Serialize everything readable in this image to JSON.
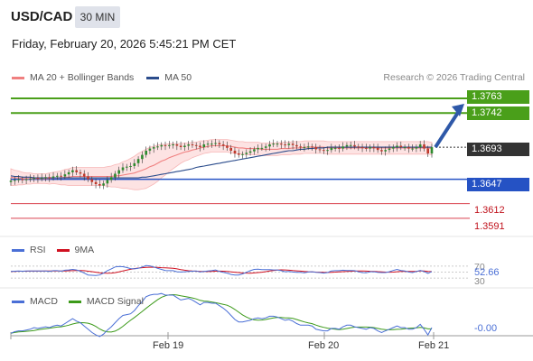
{
  "header": {
    "symbol": "USD/CAD",
    "interval": "30 MIN",
    "datetime": "Friday, February 20, 2026 5:45:21 PM CET",
    "attribution": "Research © 2026 Trading Central"
  },
  "colors": {
    "resistance": "#4a9f1a",
    "pivot": "#2552c4",
    "support": "#d9424f",
    "current": "#333333",
    "ma20": "#f08080",
    "ma50": "#2b4c8c",
    "rsi": "#4a6fd6",
    "rsi_ma": "#d01020",
    "macd": "#4a6fd6",
    "macd_signal": "#3c9a1a",
    "arrow": "#2e58a8"
  },
  "legend_main": [
    {
      "label": "MA 20 + Bollinger Bands",
      "color": "#f08080"
    },
    {
      "label": "MA 50",
      "color": "#2b4c8c"
    }
  ],
  "legend_rsi": [
    {
      "label": "RSI",
      "color": "#4a6fd6"
    },
    {
      "label": "9MA",
      "color": "#d01020"
    }
  ],
  "legend_macd": [
    {
      "label": "MACD",
      "color": "#4a6fd6"
    },
    {
      "label": "MACD Signal",
      "color": "#3c9a1a"
    }
  ],
  "levels": {
    "r2": "1.3763",
    "r1": "1.3742",
    "current": "1.3693",
    "pivot": "1.3647",
    "s1": "1.3612",
    "s2": "1.3591"
  },
  "rsi_panel": {
    "upper": "70",
    "value": "52.66",
    "lower": "30"
  },
  "macd_panel": {
    "value": "-0.00"
  },
  "x_axis": {
    "labels": [
      "Feb 19",
      "Feb 20",
      "Feb 21"
    ]
  },
  "chart_data": {
    "type": "candlestick",
    "title": "USD/CAD",
    "interval": "30 MIN",
    "ylim": [
      1.3565,
      1.3785
    ],
    "x_ticks": [
      "Feb 19",
      "Feb 20",
      "Feb 21"
    ],
    "close": [
      1.3645,
      1.3646,
      1.3647,
      1.3646,
      1.3647,
      1.3648,
      1.3649,
      1.3648,
      1.3649,
      1.365,
      1.3649,
      1.3651,
      1.3652,
      1.3651,
      1.3654,
      1.3657,
      1.366,
      1.3657,
      1.3655,
      1.3651,
      1.3647,
      1.3643,
      1.364,
      1.3638,
      1.3641,
      1.3646,
      1.365,
      1.3655,
      1.366,
      1.3664,
      1.3665,
      1.3666,
      1.367,
      1.3676,
      1.3682,
      1.3688,
      1.3691,
      1.3693,
      1.3694,
      1.3696,
      1.3695,
      1.3696,
      1.3697,
      1.3695,
      1.3693,
      1.3695,
      1.3697,
      1.3696,
      1.3695,
      1.3693,
      1.3697,
      1.3698,
      1.3698,
      1.3699,
      1.3697,
      1.3695,
      1.3692,
      1.3688,
      1.3684,
      1.3682,
      1.3683,
      1.3685,
      1.3687,
      1.369,
      1.3692,
      1.3692,
      1.3694,
      1.3697,
      1.3698,
      1.3698,
      1.3697,
      1.3696,
      1.3698,
      1.3696,
      1.3694,
      1.3693,
      1.3693,
      1.3694,
      1.3693,
      1.369,
      1.3689,
      1.3688,
      1.3689,
      1.3692,
      1.3692,
      1.3691,
      1.3694,
      1.3696,
      1.3696,
      1.3694,
      1.3693,
      1.3692,
      1.3691,
      1.3693,
      1.3692,
      1.3689,
      1.3687,
      1.3689,
      1.3691,
      1.3693,
      1.3695,
      1.3693,
      1.3693,
      1.3691,
      1.3691,
      1.3693,
      1.3697,
      1.3691,
      1.3684,
      1.3693
    ],
    "ma20": [
      1.365,
      1.3649,
      1.3649,
      1.3648,
      1.3648,
      1.3648,
      1.3648,
      1.3648,
      1.3648,
      1.3648,
      1.3648,
      1.3649,
      1.3649,
      1.3649,
      1.365,
      1.365,
      1.3651,
      1.3651,
      1.3651,
      1.3651,
      1.3651,
      1.3651,
      1.3651,
      1.3651,
      1.3651,
      1.3651,
      1.3651,
      1.3652,
      1.3652,
      1.3653,
      1.3654,
      1.3655,
      1.3656,
      1.3658,
      1.366,
      1.3662,
      1.3665,
      1.3667,
      1.367,
      1.3673,
      1.3675,
      1.3678,
      1.368,
      1.3682,
      1.3684,
      1.3686,
      1.3687,
      1.3689,
      1.369,
      1.3692,
      1.3693,
      1.3694,
      1.3695,
      1.3695,
      1.3695,
      1.3695,
      1.3695,
      1.3694,
      1.3693,
      1.3692,
      1.3692,
      1.3691,
      1.3691,
      1.3691,
      1.3691,
      1.369,
      1.369,
      1.369,
      1.369,
      1.369,
      1.3691,
      1.3691,
      1.3691,
      1.3692,
      1.3692,
      1.3692,
      1.3693,
      1.3693,
      1.3693,
      1.3693,
      1.3693,
      1.3693,
      1.3692,
      1.3692,
      1.3692,
      1.3692,
      1.3692,
      1.3692,
      1.3692,
      1.3692,
      1.3692,
      1.3692,
      1.3692,
      1.3692,
      1.3692,
      1.3692,
      1.3692,
      1.3692,
      1.3692,
      1.3692,
      1.3692,
      1.3692,
      1.3692,
      1.3692,
      1.3692,
      1.3692,
      1.3692,
      1.3692,
      1.3692,
      1.3691
    ],
    "ma50": [
      1.3652,
      1.3651,
      1.3651,
      1.365,
      1.365,
      1.365,
      1.3649,
      1.3649,
      1.3649,
      1.3649,
      1.3649,
      1.3649,
      1.3649,
      1.3649,
      1.3649,
      1.3649,
      1.3649,
      1.3649,
      1.3649,
      1.3649,
      1.3649,
      1.3649,
      1.3649,
      1.3649,
      1.3649,
      1.3649,
      1.3649,
      1.3649,
      1.3649,
      1.3649,
      1.3649,
      1.3649,
      1.3649,
      1.3649,
      1.365,
      1.365,
      1.3651,
      1.3652,
      1.3653,
      1.3654,
      1.3655,
      1.3656,
      1.3657,
      1.3658,
      1.3659,
      1.366,
      1.3661,
      1.3662,
      1.3664,
      1.3665,
      1.3666,
      1.3667,
      1.3668,
      1.3669,
      1.367,
      1.3671,
      1.3672,
      1.3673,
      1.3674,
      1.3675,
      1.3676,
      1.3677,
      1.3678,
      1.3679,
      1.368,
      1.3681,
      1.3682,
      1.3683,
      1.3684,
      1.3685,
      1.3686,
      1.3687,
      1.3688,
      1.3688,
      1.3689,
      1.369,
      1.369,
      1.3691,
      1.3691,
      1.3692,
      1.3692,
      1.3692,
      1.3693,
      1.3693,
      1.3693,
      1.3693,
      1.3693,
      1.3693,
      1.3693,
      1.3693,
      1.3693,
      1.3693,
      1.3693,
      1.3693,
      1.3693,
      1.3693,
      1.3693,
      1.3693,
      1.3693,
      1.3693,
      1.3693,
      1.3693,
      1.3693,
      1.3693,
      1.3693,
      1.3693,
      1.3693,
      1.3693,
      1.3693,
      1.3693
    ],
    "bb_width": [
      0.0012,
      0.0011,
      0.001,
      0.0009,
      0.0008,
      0.0008,
      0.0007,
      0.0007,
      0.0007,
      0.0007,
      0.0008,
      0.0008,
      0.0009,
      0.001,
      0.0011,
      0.0012,
      0.0013,
      0.0013,
      0.0013,
      0.0013,
      0.0013,
      0.0013,
      0.0013,
      0.0013,
      0.0013,
      0.0014,
      0.0015,
      0.0016,
      0.0017,
      0.0019,
      0.002,
      0.0022,
      0.0024,
      0.0026,
      0.0027,
      0.0028,
      0.0028,
      0.0027,
      0.0026,
      0.0024,
      0.0022,
      0.002,
      0.0018,
      0.0016,
      0.0014,
      0.0013,
      0.0012,
      0.0011,
      0.001,
      0.001,
      0.0009,
      0.0009,
      0.0009,
      0.0009,
      0.0009,
      0.0009,
      0.0009,
      0.0009,
      0.0009,
      0.0009,
      0.0009,
      0.0009,
      0.0009,
      0.0009,
      0.0009,
      0.0009,
      0.0009,
      0.0009,
      0.0009,
      0.0009,
      0.0009,
      0.0009,
      0.0009,
      0.0009,
      0.0009,
      0.0009,
      0.0009,
      0.0009,
      0.0009,
      0.0009,
      0.0009,
      0.0009,
      0.0009,
      0.0009,
      0.0009,
      0.0009,
      0.0009,
      0.0009,
      0.0009,
      0.0009,
      0.0009,
      0.0009,
      0.0009,
      0.0009,
      0.0009,
      0.0009,
      0.0009,
      0.0009,
      0.0009,
      0.0009,
      0.0009,
      0.0009,
      0.0009,
      0.0009,
      0.0009,
      0.0009,
      0.0009,
      0.0009,
      0.0009,
      0.0009
    ],
    "levels": {
      "r2": 1.3763,
      "r1": 1.3742,
      "current": 1.3693,
      "pivot": 1.3647,
      "s1": 1.3612,
      "s2": 1.3591
    },
    "rsi": {
      "ylim": [
        0,
        100
      ],
      "upper": 70,
      "lower": 30,
      "last": 52.66
    },
    "macd": {
      "last": -0.0
    }
  }
}
